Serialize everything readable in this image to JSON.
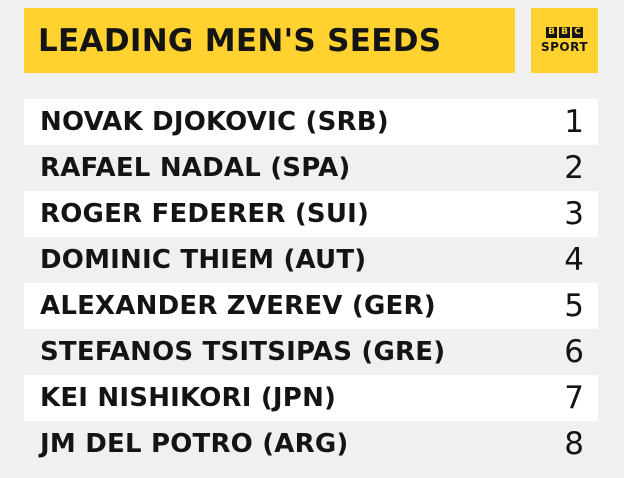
{
  "header": {
    "title": "LEADING MEN'S SEEDS"
  },
  "logo": {
    "letters": [
      "B",
      "B",
      "C"
    ],
    "sport": "SPORT"
  },
  "seeds": [
    {
      "player": "NOVAK DJOKOVIC (SRB)",
      "seed": "1"
    },
    {
      "player": "RAFAEL NADAL (SPA)",
      "seed": "2"
    },
    {
      "player": "ROGER FEDERER (SUI)",
      "seed": "3"
    },
    {
      "player": "DOMINIC THIEM (AUT)",
      "seed": "4"
    },
    {
      "player": "ALEXANDER ZVEREV (GER)",
      "seed": "5"
    },
    {
      "player": "STEFANOS TSITSIPAS (GRE)",
      "seed": "6"
    },
    {
      "player": "KEI NISHIKORI (JPN)",
      "seed": "7"
    },
    {
      "player": "JM DEL POTRO (ARG)",
      "seed": "8"
    }
  ],
  "colors": {
    "accent": "#ffd230",
    "text": "#141414",
    "row_light": "#ffffff",
    "row_alt": "#f0f0f0"
  }
}
